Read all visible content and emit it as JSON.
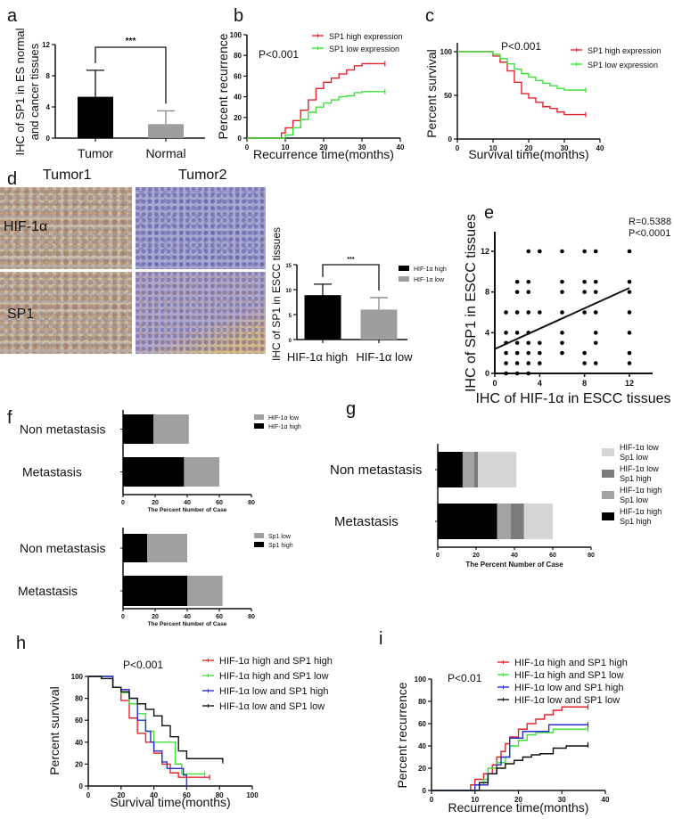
{
  "chart_data": [
    {
      "panel": "a",
      "type": "bar",
      "categories": [
        "Tumor",
        "Normal"
      ],
      "values": [
        5.3,
        1.8
      ],
      "errors": [
        3.4,
        1.7
      ],
      "colors": [
        "#000000",
        "#9e9e9e"
      ],
      "ylabel_lines": [
        "IHC of SP1 in ES normal",
        "and cancer tissues"
      ],
      "yticks": [
        0,
        4,
        8,
        12
      ],
      "ylim": [
        0,
        12
      ],
      "significance": "***"
    },
    {
      "panel": "b",
      "type": "line",
      "step": true,
      "xlabel": "Recurrence time(months)",
      "ylabel": "Percent recurrence",
      "xticks": [
        0,
        10,
        20,
        30,
        40
      ],
      "yticks": [
        0,
        20,
        40,
        60,
        80,
        100
      ],
      "xlim": [
        0,
        40
      ],
      "ylim": [
        0,
        100
      ],
      "annotation": "P<0.001",
      "series": [
        {
          "name": "SP1 high expression",
          "color": "#e0262c",
          "x": [
            0,
            8,
            9,
            10,
            12,
            14,
            16,
            18,
            20,
            22,
            24,
            26,
            28,
            30,
            36
          ],
          "y": [
            0,
            0,
            5,
            10,
            17,
            27,
            37,
            48,
            54,
            58,
            62,
            66,
            70,
            72,
            72
          ]
        },
        {
          "name": "SP1 low expression",
          "color": "#3ee03a",
          "x": [
            0,
            9,
            10,
            12,
            14,
            16,
            18,
            20,
            22,
            24,
            26,
            28,
            30,
            36
          ],
          "y": [
            0,
            0,
            3,
            10,
            18,
            25,
            30,
            34,
            37,
            40,
            41,
            44,
            45,
            45
          ]
        }
      ]
    },
    {
      "panel": "c",
      "type": "line",
      "step": true,
      "xlabel": "Survival time(months)",
      "ylabel": "Percent survival",
      "xticks": [
        0,
        10,
        20,
        30,
        40
      ],
      "yticks": [
        0,
        50,
        100
      ],
      "xlim": [
        0,
        40
      ],
      "ylim": [
        0,
        100
      ],
      "annotation": "P<0.001",
      "series": [
        {
          "name": "SP1 high expression",
          "color": "#e0262c",
          "x": [
            0,
            8,
            10,
            12,
            14,
            16,
            18,
            20,
            22,
            24,
            26,
            28,
            30,
            36
          ],
          "y": [
            100,
            100,
            95,
            88,
            78,
            65,
            52,
            47,
            42,
            37,
            35,
            31,
            28,
            28
          ]
        },
        {
          "name": "SP1 low expression",
          "color": "#3ee03a",
          "x": [
            0,
            8,
            10,
            12,
            14,
            16,
            18,
            20,
            22,
            24,
            26,
            28,
            30,
            36
          ],
          "y": [
            100,
            100,
            97,
            92,
            86,
            80,
            75,
            71,
            67,
            64,
            61,
            58,
            56,
            56
          ]
        }
      ]
    },
    {
      "panel": "d",
      "type": "bar",
      "column_labels": [
        "Tumor1",
        "Tumor2"
      ],
      "row_labels": [
        "HIF-1α",
        "SP1"
      ],
      "categories": [
        "HIF-1α high",
        "HIF-1α low"
      ],
      "values": [
        8.9,
        6.0
      ],
      "errors": [
        2.2,
        2.4
      ],
      "colors": [
        "#000000",
        "#9e9e9e"
      ],
      "ylabel_lines": [
        "IHC of SP1 in ESCC tissues"
      ],
      "yticks": [
        0,
        5,
        10,
        15
      ],
      "ylim": [
        0,
        15
      ],
      "significance": "***",
      "legend": [
        "HIF-1α high",
        "HIF-1α low"
      ],
      "legend_placement": "top-right"
    },
    {
      "panel": "e",
      "type": "scatter",
      "xlabel": "IHC of HIF-1α in ESCC tissues",
      "ylabel": "IHC of SP1 in ESCC tissues",
      "xticks": [
        0,
        4,
        8,
        12
      ],
      "yticks": [
        0,
        4,
        8,
        12
      ],
      "xlim": [
        0,
        14
      ],
      "ylim": [
        0,
        14
      ],
      "annotations": [
        "R=0.5388",
        "P<0.0001"
      ],
      "points": [
        [
          3,
          12
        ],
        [
          4,
          12
        ],
        [
          6,
          12
        ],
        [
          8,
          12
        ],
        [
          9,
          12
        ],
        [
          12,
          12
        ],
        [
          2,
          9
        ],
        [
          3,
          9
        ],
        [
          6,
          9
        ],
        [
          8,
          9
        ],
        [
          9,
          9
        ],
        [
          12,
          9
        ],
        [
          2,
          8
        ],
        [
          3,
          8
        ],
        [
          6,
          8
        ],
        [
          8,
          8
        ],
        [
          9,
          8
        ],
        [
          12,
          8
        ],
        [
          1,
          6
        ],
        [
          2,
          6
        ],
        [
          3,
          6
        ],
        [
          4,
          6
        ],
        [
          6,
          6
        ],
        [
          8,
          6
        ],
        [
          9,
          6
        ],
        [
          12,
          6
        ],
        [
          1,
          4
        ],
        [
          2,
          4
        ],
        [
          3,
          4
        ],
        [
          6,
          4
        ],
        [
          9,
          4
        ],
        [
          12,
          4
        ],
        [
          1,
          3
        ],
        [
          2,
          3
        ],
        [
          3,
          3
        ],
        [
          4,
          3
        ],
        [
          6,
          3
        ],
        [
          9,
          3
        ],
        [
          1,
          2
        ],
        [
          2,
          2
        ],
        [
          3,
          2
        ],
        [
          4,
          2
        ],
        [
          6,
          2
        ],
        [
          8,
          2
        ],
        [
          12,
          2
        ],
        [
          1,
          1
        ],
        [
          2,
          1
        ],
        [
          3,
          1
        ],
        [
          4,
          1
        ],
        [
          8,
          1
        ],
        [
          9,
          1
        ],
        [
          12,
          1
        ],
        [
          1,
          0
        ],
        [
          2,
          0
        ],
        [
          3,
          0
        ]
      ],
      "fit_line": {
        "x": [
          0,
          12
        ],
        "y": [
          2.4,
          8.4
        ]
      }
    },
    {
      "panel": "f",
      "type": "bar",
      "orientation": "horizontal",
      "stacked": true,
      "categories": [
        "Non metastasis",
        "Metastasis"
      ],
      "xlabel": "The Percent Number of Case",
      "xticks": [
        0,
        20,
        40,
        60,
        80
      ],
      "xlim": [
        0,
        80
      ],
      "series": [
        {
          "name": "HIF-1α high",
          "color": "#000000",
          "values": [
            19,
            38
          ]
        },
        {
          "name": "HIF-1α low",
          "color": "#a0a0a0",
          "values": [
            22,
            22
          ]
        }
      ],
      "legend_placement": "top-right"
    },
    {
      "panel": "",
      "type": "bar",
      "orientation": "horizontal",
      "stacked": true,
      "categories": [
        "Non metastasis",
        "Metastasis"
      ],
      "xlabel": "The Percent Number of Case",
      "xticks": [
        0,
        20,
        40,
        60,
        80
      ],
      "xlim": [
        0,
        80
      ],
      "series": [
        {
          "name": "Sp1 high",
          "color": "#000000",
          "values": [
            15,
            40
          ]
        },
        {
          "name": "Sp1 low",
          "color": "#a0a0a0",
          "values": [
            25,
            22
          ]
        }
      ],
      "legend_placement": "top-right"
    },
    {
      "panel": "g",
      "type": "bar",
      "orientation": "horizontal",
      "stacked": true,
      "categories": [
        "Non metastasis",
        "Metastasis"
      ],
      "xlabel": "The Percent Number of Case",
      "xticks": [
        0,
        20,
        40,
        60,
        80
      ],
      "xlim": [
        0,
        80
      ],
      "series": [
        {
          "name": "HIF-1α high Sp1 high",
          "color": "#000000",
          "values": [
            13,
            31
          ]
        },
        {
          "name": "HIF-1α high Sp1 low",
          "color": "#a3a3a3",
          "values": [
            6,
            7
          ]
        },
        {
          "name": "HIF-1α low Sp1 high",
          "color": "#7b7b7b",
          "values": [
            2,
            7
          ]
        },
        {
          "name": "HIF-1α low Sp1 low",
          "color": "#d5d5d5",
          "values": [
            20,
            15
          ]
        }
      ],
      "legend_placement": "right"
    },
    {
      "panel": "h",
      "type": "line",
      "step": true,
      "xlabel": "Survival time(months)",
      "ylabel": "Percent survival",
      "xticks": [
        0,
        20,
        40,
        60,
        80,
        100
      ],
      "yticks": [
        0,
        20,
        40,
        60,
        80,
        100
      ],
      "xlim": [
        0,
        100
      ],
      "ylim": [
        0,
        100
      ],
      "annotation": "P<0.001",
      "series": [
        {
          "name": "HIF-1α high and SP1 high",
          "color": "#e0262c",
          "x": [
            0,
            10,
            15,
            20,
            25,
            30,
            35,
            40,
            45,
            50,
            55,
            74
          ],
          "y": [
            100,
            100,
            90,
            78,
            62,
            48,
            40,
            30,
            20,
            12,
            8,
            8
          ]
        },
        {
          "name": "HIF-1α high and SP1 low",
          "color": "#3ee03a",
          "x": [
            0,
            12,
            15,
            20,
            25,
            30,
            35,
            40,
            50,
            53,
            57,
            71
          ],
          "y": [
            100,
            100,
            90,
            85,
            75,
            66,
            50,
            40,
            40,
            20,
            11,
            11
          ]
        },
        {
          "name": "HIF-1α low and SP1 high",
          "color": "#2b2fd6",
          "x": [
            0,
            12,
            15,
            20,
            25,
            30,
            35,
            38,
            40,
            45,
            48,
            56,
            58,
            60
          ],
          "y": [
            100,
            100,
            90,
            88,
            80,
            60,
            50,
            40,
            32,
            22,
            16,
            16,
            10,
            0
          ]
        },
        {
          "name": "HIF-1α low and SP1 low",
          "color": "#111111",
          "x": [
            0,
            8,
            15,
            20,
            25,
            30,
            35,
            40,
            45,
            50,
            55,
            60,
            82
          ],
          "y": [
            100,
            98,
            90,
            86,
            80,
            75,
            70,
            64,
            55,
            45,
            32,
            25,
            23
          ]
        }
      ]
    },
    {
      "panel": "i",
      "type": "line",
      "step": true,
      "xlabel": "Recurrence time(months)",
      "ylabel": "Percent recurrence",
      "xticks": [
        0,
        10,
        20,
        30,
        40
      ],
      "yticks": [
        0,
        20,
        40,
        60,
        80,
        100
      ],
      "xlim": [
        0,
        40
      ],
      "ylim": [
        0,
        100
      ],
      "annotation": "P<0.01",
      "series": [
        {
          "name": "HIF-1α high and SP1 high",
          "color": "#e0262c",
          "x": [
            0,
            8,
            9,
            10,
            12,
            14,
            15,
            16,
            17,
            18,
            20,
            22,
            24,
            26,
            28,
            30,
            36
          ],
          "y": [
            0,
            0,
            5,
            10,
            15,
            23,
            30,
            35,
            42,
            48,
            55,
            60,
            64,
            68,
            72,
            75,
            75
          ]
        },
        {
          "name": "HIF-1α high and SP1 low",
          "color": "#3ee03a",
          "x": [
            0,
            9,
            10,
            12,
            13,
            15,
            17,
            18,
            20,
            22,
            24,
            28,
            36
          ],
          "y": [
            0,
            0,
            5,
            10,
            20,
            25,
            30,
            40,
            45,
            50,
            52,
            55,
            55
          ]
        },
        {
          "name": "HIF-1α low and SP1 high",
          "color": "#2b2fd6",
          "x": [
            0,
            9,
            10,
            12,
            13,
            15,
            16,
            18,
            21,
            27,
            36
          ],
          "y": [
            0,
            0,
            5,
            5,
            15,
            23,
            30,
            47,
            53,
            59,
            59
          ]
        },
        {
          "name": "HIF-1α low and SP1 low",
          "color": "#111111",
          "x": [
            0,
            9,
            11,
            13,
            15,
            17,
            19,
            21,
            23,
            25,
            28,
            31,
            36
          ],
          "y": [
            0,
            0,
            7,
            15,
            20,
            24,
            27,
            30,
            32,
            33,
            38,
            40,
            41
          ]
        }
      ]
    }
  ]
}
